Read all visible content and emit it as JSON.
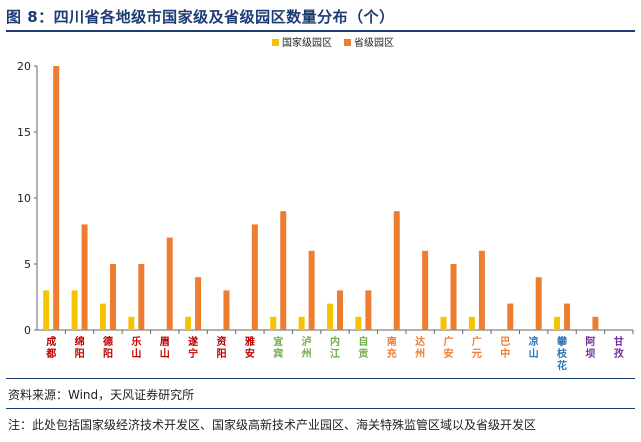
{
  "title": "图 8：四川省各地级市国家级及省级园区数量分布（个）",
  "source": "资料来源：Wind，天风证券研究所",
  "note": "注：此处包括国家级经济技术开发区、国家级高新技术产业园区、海关特殊监管区域以及省级开发区",
  "colors": {
    "national": "#f5c400",
    "provincial": "#ed7d31",
    "accent": "#1d3c74"
  },
  "chart_data": {
    "type": "bar",
    "ylim": [
      0,
      20
    ],
    "yticks": [
      "0",
      "5",
      "10",
      "15",
      "20"
    ],
    "legend_position": "top-center",
    "categories": [
      "成都",
      "绵阳",
      "德阳",
      "乐山",
      "眉山",
      "遂宁",
      "资阳",
      "雅安",
      "宜宾",
      "泸州",
      "内江",
      "自贡",
      "南充",
      "达州",
      "广安",
      "广元",
      "巴中",
      "凉山",
      "攀枝花",
      "阿坝",
      "甘孜"
    ],
    "category_colors": [
      "#c00000",
      "#c00000",
      "#c00000",
      "#c00000",
      "#c00000",
      "#c00000",
      "#c00000",
      "#c00000",
      "#70ad47",
      "#70ad47",
      "#70ad47",
      "#70ad47",
      "#ed7d31",
      "#ed7d31",
      "#ed7d31",
      "#ed7d31",
      "#ed7d31",
      "#2e75b6",
      "#2e75b6",
      "#7030a0",
      "#7030a0"
    ],
    "series": [
      {
        "name": "国家级园区",
        "color": "#f5c400",
        "values": [
          3,
          3,
          2,
          1,
          0,
          1,
          0,
          0,
          1,
          1,
          2,
          1,
          0,
          0,
          1,
          1,
          0,
          0,
          1,
          0,
          0
        ]
      },
      {
        "name": "省级园区",
        "color": "#ed7d31",
        "values": [
          20,
          8,
          5,
          5,
          7,
          4,
          3,
          8,
          9,
          6,
          3,
          3,
          9,
          6,
          5,
          6,
          2,
          4,
          2,
          1,
          0
        ]
      }
    ]
  }
}
